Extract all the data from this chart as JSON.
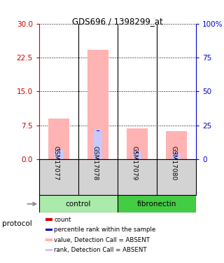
{
  "title": "GDS696 / 1398299_at",
  "samples": [
    "GSM17077",
    "GSM17078",
    "GSM17079",
    "GSM17080"
  ],
  "value_absent": [
    9.0,
    24.2,
    6.8,
    6.2
  ],
  "rank_absent": [
    2.2,
    6.5,
    1.5,
    1.2
  ],
  "count_val": [
    0.12,
    0.12,
    0.12,
    0.12
  ],
  "rank_val_scaled": [
    2.1,
    6.3,
    1.4,
    1.1
  ],
  "left_ylim": [
    0,
    30
  ],
  "left_yticks": [
    0,
    7.5,
    15,
    22.5,
    30
  ],
  "right_ylim": [
    0,
    100
  ],
  "right_yticks": [
    0,
    25,
    50,
    75,
    100
  ],
  "left_color": "#cc0000",
  "right_color": "#0000cc",
  "value_bar_color": "#ffb3b3",
  "rank_bar_color": "#c8c8ff",
  "count_color": "#cc0000",
  "prank_color": "#0000cc",
  "bg_color": "#ffffff",
  "sample_bg": "#d3d3d3",
  "control_color": "#aaeaaa",
  "fibronectin_color": "#44cc44",
  "legend_items": [
    {
      "label": "count",
      "color": "#cc0000"
    },
    {
      "label": "percentile rank within the sample",
      "color": "#0000cc"
    },
    {
      "label": "value, Detection Call = ABSENT",
      "color": "#ffb3b3"
    },
    {
      "label": "rank, Detection Call = ABSENT",
      "color": "#c8c8ff"
    }
  ]
}
